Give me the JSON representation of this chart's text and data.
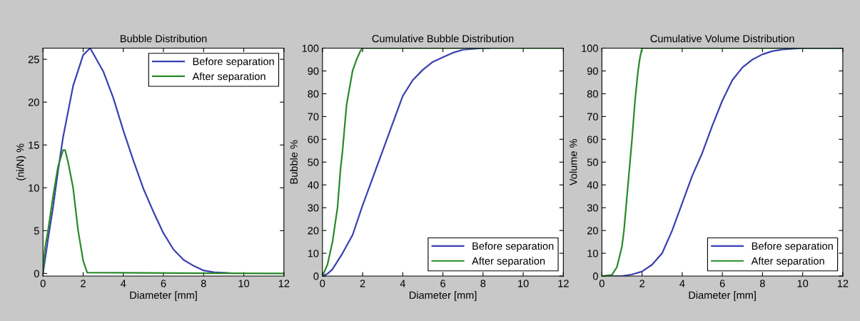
{
  "chart_data": [
    {
      "type": "line",
      "title": "Bubble Distribution",
      "xlabel": "Diameter [mm]",
      "ylabel": "(ni/N) %",
      "xlim": [
        0,
        12
      ],
      "ylim": [
        -0.3,
        26.3
      ],
      "xticks": [
        0,
        2,
        4,
        6,
        8,
        10,
        12
      ],
      "yticks": [
        0,
        5,
        10,
        15,
        20,
        25
      ],
      "legend": "top right",
      "grid": false,
      "series": [
        {
          "name": "Before separation",
          "color": "#3a40b0",
          "x": [
            0,
            0.25,
            0.5,
            0.75,
            1,
            1.5,
            2,
            2.35,
            3,
            3.5,
            4,
            4.5,
            5,
            5.5,
            6,
            6.5,
            7,
            7.5,
            8,
            8.5,
            9.3
          ],
          "values": [
            0,
            4,
            7.7,
            12,
            15.9,
            21.9,
            25.5,
            26.3,
            23.6,
            20.5,
            16.7,
            13.2,
            9.9,
            7.2,
            4.7,
            2.8,
            1.6,
            0.9,
            0.35,
            0.14,
            0.05
          ]
        },
        {
          "name": "After separation",
          "color": "#2a8a2a",
          "x": [
            0,
            0.1,
            0.25,
            0.5,
            0.75,
            1,
            1.1,
            1.25,
            1.5,
            1.75,
            2,
            2.2,
            12
          ],
          "values": [
            0,
            3,
            5,
            9,
            12.5,
            14.4,
            14.4,
            13,
            10,
            5,
            1.5,
            0.1,
            0
          ]
        }
      ]
    },
    {
      "type": "line",
      "title": "Cumulative Bubble Distribution",
      "xlabel": "Diameter [mm]",
      "ylabel": "Bubble %",
      "xlim": [
        0,
        12
      ],
      "ylim": [
        0,
        100
      ],
      "xticks": [
        0,
        2,
        4,
        6,
        8,
        10,
        12
      ],
      "yticks": [
        0,
        10,
        20,
        30,
        40,
        50,
        60,
        70,
        80,
        90,
        100
      ],
      "legend": "bottom right",
      "grid": false,
      "series": [
        {
          "name": "Before separation",
          "color": "#3a40b0",
          "x": [
            0,
            0.25,
            0.5,
            1,
            1.5,
            2,
            2.5,
            3,
            3.5,
            4,
            4.5,
            5,
            5.5,
            6,
            6.5,
            7,
            8,
            8.3
          ],
          "values": [
            0,
            1,
            3,
            10,
            18,
            31,
            43,
            55,
            67,
            79,
            86,
            90.5,
            94,
            96,
            98,
            99.3,
            100,
            100
          ]
        },
        {
          "name": "After separation",
          "color": "#2a8a2a",
          "x": [
            0,
            0.25,
            0.5,
            0.75,
            0.9,
            1,
            1.2,
            1.5,
            1.7,
            1.9,
            2,
            12
          ],
          "values": [
            0,
            5,
            15,
            30,
            47,
            55,
            75,
            90,
            95,
            99,
            100,
            100
          ]
        }
      ]
    },
    {
      "type": "line",
      "title": "Cumulative Volume Distribution",
      "xlabel": "Diameter [mm]",
      "ylabel": "Volume %",
      "xlim": [
        0,
        12
      ],
      "ylim": [
        0,
        100
      ],
      "xticks": [
        0,
        2,
        4,
        6,
        8,
        10,
        12
      ],
      "yticks": [
        0,
        10,
        20,
        30,
        40,
        50,
        60,
        70,
        80,
        90,
        100
      ],
      "legend": "bottom right",
      "grid": false,
      "series": [
        {
          "name": "Before separation",
          "color": "#3a40b0",
          "x": [
            0,
            1,
            1.5,
            2,
            2.5,
            3,
            3.5,
            4,
            4.5,
            5,
            5.5,
            6,
            6.5,
            7,
            7.5,
            8,
            8.5,
            9,
            10,
            12
          ],
          "values": [
            0,
            0,
            0.7,
            2,
            5,
            10,
            20,
            32,
            44,
            54,
            66,
            77,
            86,
            91.5,
            95,
            97.3,
            98.7,
            99.4,
            100,
            100
          ]
        },
        {
          "name": "After separation",
          "color": "#2a8a2a",
          "x": [
            0,
            0.5,
            0.75,
            1,
            1.1,
            1.25,
            1.5,
            1.65,
            1.8,
            1.9,
            2,
            12
          ],
          "values": [
            0,
            0.5,
            4,
            13,
            20,
            35,
            60,
            77,
            90,
            96,
            100,
            100
          ]
        }
      ]
    }
  ]
}
